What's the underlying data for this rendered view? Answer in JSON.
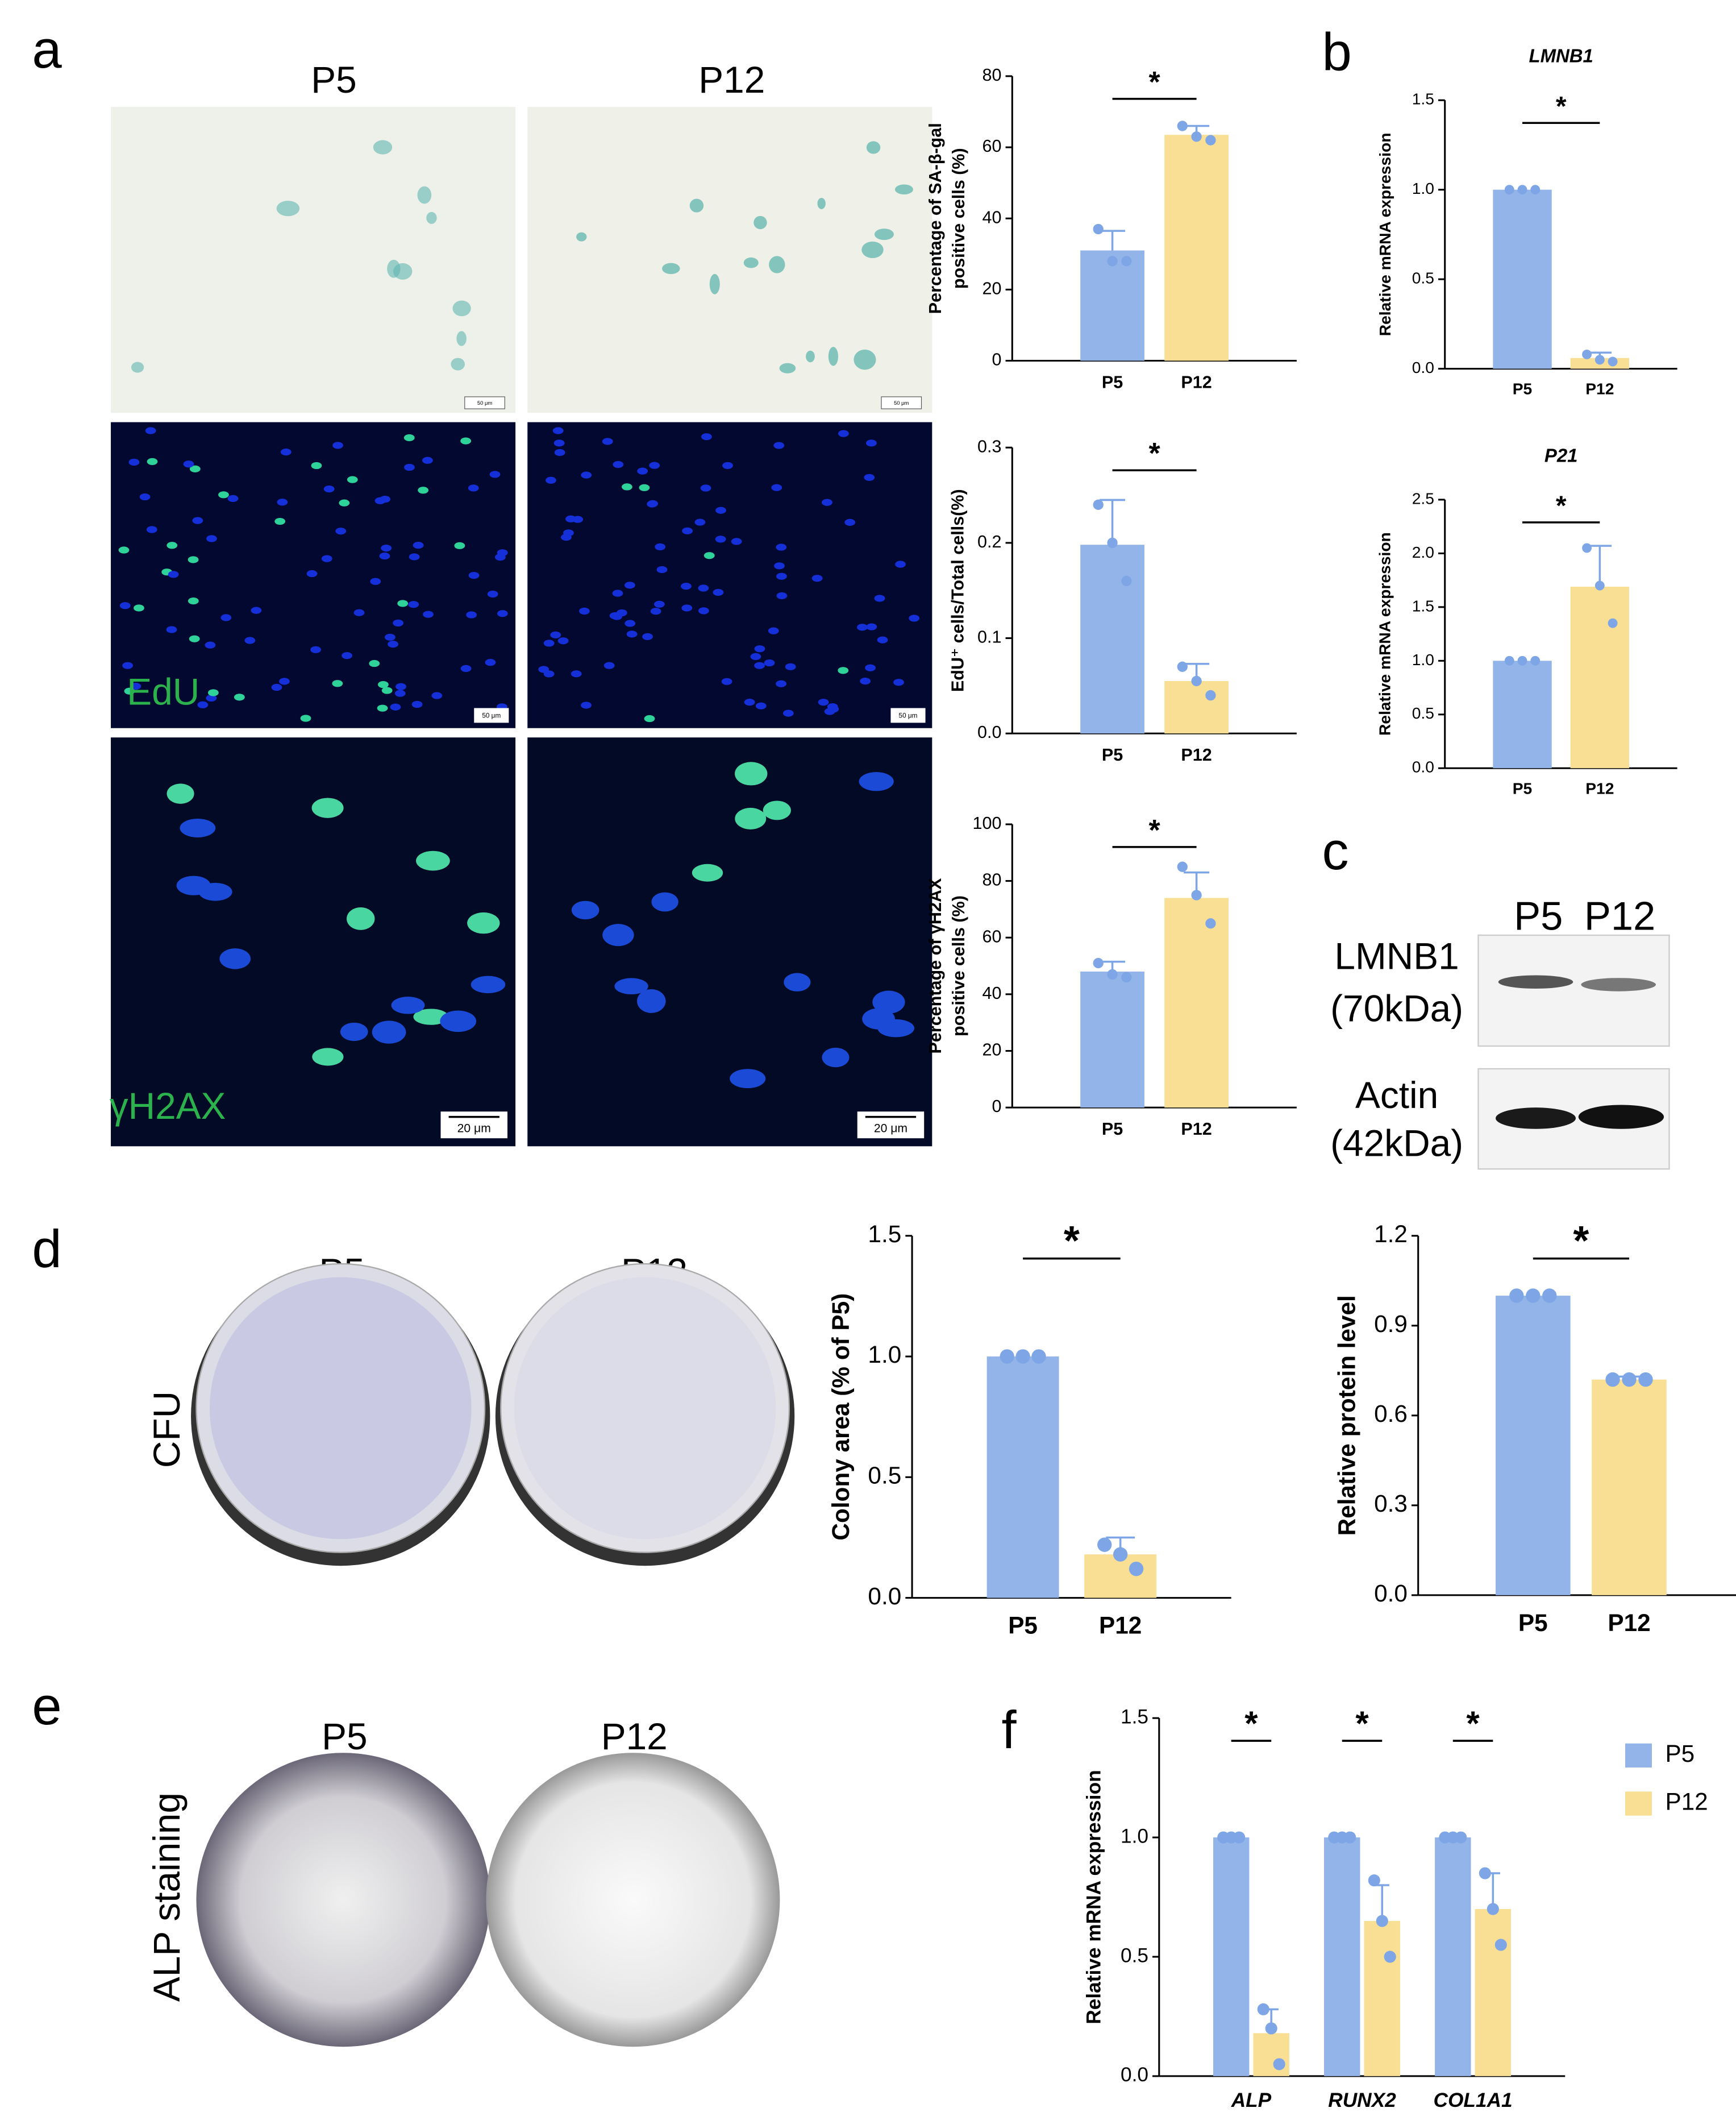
{
  "panel_labels": [
    "a",
    "b",
    "c",
    "d",
    "e",
    "f"
  ],
  "micrographs": {
    "columns": [
      "P5",
      "P12"
    ],
    "rows": [
      "EdU",
      "γH2AX"
    ],
    "scale_bars": [
      "50 μm",
      "50 μm",
      "50 μm",
      "50 μm",
      "20 μm",
      "20 μm"
    ]
  },
  "western_blot": {
    "lanes": [
      "P5",
      "P12"
    ],
    "proteins": [
      {
        "name": "LMNB1",
        "size": "(70kDa)"
      },
      {
        "name": "Actin",
        "size": "(42kDa)"
      }
    ]
  },
  "cfu": {
    "columns": [
      "P5",
      "P12"
    ],
    "label": "CFU"
  },
  "alp": {
    "columns": [
      "P5",
      "P12"
    ],
    "label": "ALP staining"
  },
  "chart_data": [
    {
      "type": "bar",
      "ylabel": [
        "Percentage of SA-β-gal",
        "positive cells  (%)"
      ],
      "categories": [
        "P5",
        "P12"
      ],
      "values": [
        31,
        63.5
      ],
      "errors": [
        5.5,
        2.5
      ],
      "points": [
        [
          37,
          28,
          28
        ],
        [
          66,
          63,
          62
        ]
      ],
      "colors": [
        "#93b4e9",
        "#f8df94"
      ],
      "point_color": "#7ea6e6",
      "ylim": [
        0,
        80
      ],
      "yticks": [
        0,
        20,
        40,
        60,
        80
      ],
      "significance": "*"
    },
    {
      "type": "bar",
      "ylabel": [
        "EdU⁺ cells/Total cells(%)"
      ],
      "categories": [
        "P5",
        "P12"
      ],
      "values": [
        0.198,
        0.055
      ],
      "errors": [
        0.047,
        0.018
      ],
      "points": [
        [
          0.24,
          0.2,
          0.16
        ],
        [
          0.07,
          0.055,
          0.04
        ]
      ],
      "colors": [
        "#93b4e9",
        "#f8df94"
      ],
      "point_color": "#7ea6e6",
      "ylim": [
        0,
        0.3
      ],
      "yticks": [
        {
          "value": 0,
          "label": "0.0"
        },
        0.1,
        0.2,
        0.3
      ],
      "significance": "*"
    },
    {
      "type": "bar",
      "ylabel": [
        "Percentage of γH2AX",
        "positive cells  (%)"
      ],
      "categories": [
        "P5",
        "P12"
      ],
      "values": [
        48,
        74
      ],
      "errors": [
        3.5,
        9
      ],
      "points": [
        [
          51,
          47,
          46
        ],
        [
          85,
          75,
          65
        ]
      ],
      "colors": [
        "#93b4e9",
        "#f8df94"
      ],
      "point_color": "#7ea6e6",
      "ylim": [
        0,
        100
      ],
      "yticks": [
        0,
        20,
        40,
        60,
        80,
        100
      ],
      "significance": "*"
    },
    {
      "type": "bar",
      "title": "LMNB1",
      "ylabel": [
        "Relative mRNA expression"
      ],
      "categories": [
        "P5",
        "P12"
      ],
      "values": [
        1.0,
        0.06
      ],
      "errors": [
        0,
        0.03
      ],
      "points": [
        [
          1,
          1,
          1
        ],
        [
          0.08,
          0.05,
          0.04
        ]
      ],
      "colors": [
        "#93b4e9",
        "#f8df94"
      ],
      "point_color": "#7ea6e6",
      "ylim": [
        0,
        1.5
      ],
      "yticks": [
        {
          "value": 0,
          "label": "0.0"
        },
        0.5,
        {
          "value": 1,
          "label": "1.0"
        },
        1.5
      ],
      "significance": "*"
    },
    {
      "type": "bar",
      "title": "P21",
      "ylabel": [
        "Relative mRNA expression"
      ],
      "categories": [
        "P5",
        "P12"
      ],
      "values": [
        1.0,
        1.69
      ],
      "errors": [
        0,
        0.38
      ],
      "points": [
        [
          1,
          1,
          1
        ],
        [
          2.05,
          1.7,
          1.35
        ]
      ],
      "colors": [
        "#93b4e9",
        "#f8df94"
      ],
      "point_color": "#7ea6e6",
      "ylim": [
        0,
        2.5
      ],
      "yticks": [
        {
          "value": 0,
          "label": "0.0"
        },
        0.5,
        {
          "value": 1,
          "label": "1.0"
        },
        1.5,
        {
          "value": 2,
          "label": "2.0"
        },
        2.5
      ],
      "significance": "*"
    },
    {
      "type": "bar",
      "ylabel": [
        "Colony area  (% of P5)"
      ],
      "categories": [
        "P5",
        "P12"
      ],
      "values": [
        1.0,
        0.18
      ],
      "errors": [
        0,
        0.07
      ],
      "points": [
        [
          1,
          1,
          1
        ],
        [
          0.22,
          0.18,
          0.12
        ]
      ],
      "colors": [
        "#93b4e9",
        "#f8df94"
      ],
      "point_color": "#7ea6e6",
      "ylim": [
        0,
        1.5
      ],
      "yticks": [
        {
          "value": 0,
          "label": "0.0"
        },
        0.5,
        {
          "value": 1,
          "label": "1.0"
        },
        1.5
      ],
      "significance": "*"
    },
    {
      "type": "bar",
      "ylabel": [
        "Relative protein level"
      ],
      "categories": [
        "P5",
        "P12"
      ],
      "values": [
        1.0,
        0.72
      ],
      "errors": [
        0,
        0.01
      ],
      "points": [
        [
          1,
          1,
          1
        ],
        [
          0.72,
          0.72,
          0.72
        ]
      ],
      "colors": [
        "#93b4e9",
        "#f8df94"
      ],
      "point_color": "#7ea6e6",
      "ylim": [
        0,
        1.2
      ],
      "yticks": [
        {
          "value": 0,
          "label": "0.0"
        },
        0.3,
        0.6,
        0.9,
        1.2
      ],
      "significance": "*"
    },
    {
      "type": "grouped_bar",
      "ylabel": [
        "Relative mRNA expression"
      ],
      "categories": [
        "ALP",
        "RUNX2",
        "COL1A1"
      ],
      "series": [
        {
          "name": "P5",
          "color": "#93b4e9",
          "values": [
            1.0,
            1.0,
            1.0
          ],
          "errors": [
            0,
            0,
            0
          ],
          "points": [
            [
              1,
              1,
              1
            ],
            [
              1,
              1,
              1
            ],
            [
              1,
              1,
              1
            ]
          ]
        },
        {
          "name": "P12",
          "color": "#f8df94",
          "values": [
            0.18,
            0.65,
            0.7
          ],
          "errors": [
            0.1,
            0.15,
            0.15
          ],
          "points": [
            [
              0.28,
              0.2,
              0.05
            ],
            [
              0.82,
              0.65,
              0.5
            ],
            [
              0.85,
              0.7,
              0.55
            ]
          ]
        }
      ],
      "point_color": "#7ea6e6",
      "ylim": [
        0,
        1.5
      ],
      "yticks": [
        {
          "value": 0,
          "label": "0.0"
        },
        0.5,
        {
          "value": 1,
          "label": "1.0"
        },
        1.5
      ],
      "significance": [
        "*",
        "*",
        "*"
      ],
      "legend": "right"
    }
  ]
}
